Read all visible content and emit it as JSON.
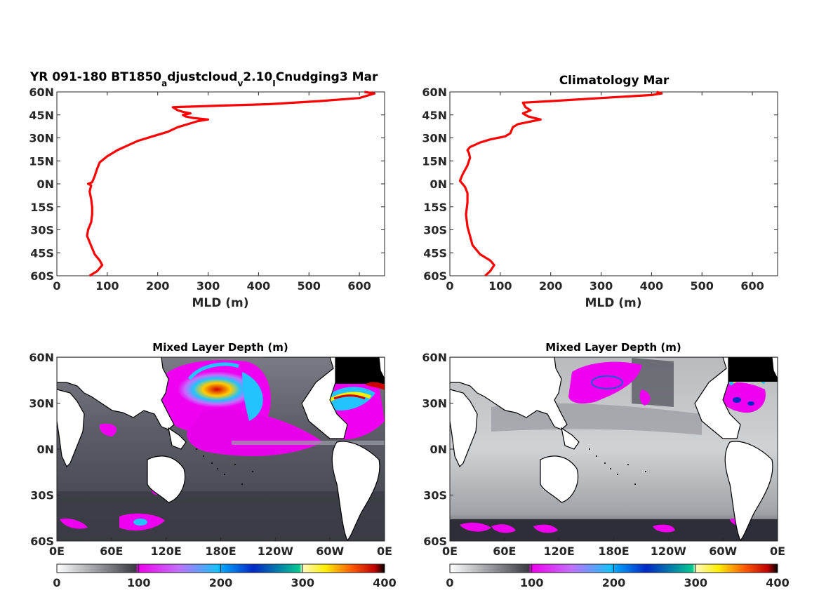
{
  "colors": {
    "profile_line": "#ff0000",
    "axis": "#262626"
  },
  "chart_data": [
    {
      "type": "line",
      "title_main": "YR 091-180 BT1850",
      "title_sub1": "a",
      "title_mid": "djustcloud",
      "title_sub2": "v",
      "title_mid2": "2.10",
      "title_sub3": "I",
      "title_end": "Cnudging3 Mar",
      "xlabel": "MLD (m)",
      "xlim": [
        0,
        650
      ],
      "ylim": [
        -60,
        60
      ],
      "xticks": [
        "0",
        "100",
        "200",
        "300",
        "400",
        "500",
        "600"
      ],
      "yticks": [
        "60S",
        "45S",
        "30S",
        "15S",
        "0N",
        "15N",
        "30N",
        "45N",
        "60N"
      ],
      "series": [
        {
          "x": [
            65,
            80,
            90,
            85,
            75,
            70,
            65,
            60,
            62,
            68,
            70,
            70,
            68,
            65,
            68,
            62,
            70,
            75,
            80,
            85,
            100,
            120,
            140,
            160,
            190,
            220,
            240,
            260,
            280,
            300,
            270,
            255,
            250,
            265,
            250,
            240,
            230,
            320,
            420,
            520,
            600,
            620,
            630,
            610
          ],
          "y": [
            -60,
            -57,
            -53,
            -50,
            -46,
            -42,
            -38,
            -34,
            -30,
            -25,
            -20,
            -15,
            -10,
            -5,
            -1,
            0,
            1,
            5,
            10,
            14,
            18,
            22,
            25,
            28,
            31,
            34,
            37,
            39,
            41,
            42,
            43,
            44,
            45,
            46,
            47,
            48,
            50,
            51,
            52,
            54,
            56,
            58,
            59,
            60
          ]
        }
      ]
    },
    {
      "type": "line",
      "title": "Climatology Mar",
      "xlabel": "MLD (m)",
      "xlim": [
        0,
        650
      ],
      "ylim": [
        -60,
        60
      ],
      "xticks": [
        "0",
        "100",
        "200",
        "300",
        "400",
        "500",
        "600"
      ],
      "yticks": [
        "60S",
        "45S",
        "30S",
        "15S",
        "0N",
        "15N",
        "30N",
        "45N",
        "60N"
      ],
      "series": [
        {
          "x": [
            70,
            80,
            88,
            80,
            60,
            45,
            40,
            35,
            32,
            35,
            35,
            30,
            25,
            20,
            25,
            35,
            40,
            38,
            35,
            40,
            60,
            80,
            110,
            120,
            125,
            135,
            180,
            155,
            145,
            160,
            150,
            145,
            200,
            300,
            400,
            420,
            410
          ],
          "y": [
            -60,
            -57,
            -53,
            -50,
            -46,
            -40,
            -34,
            -28,
            -20,
            -12,
            -6,
            -2,
            0,
            2,
            6,
            12,
            17,
            20,
            22,
            24,
            27,
            29,
            31,
            33,
            37,
            39,
            42,
            44,
            46,
            48,
            50,
            53,
            54,
            56,
            58,
            59,
            60
          ]
        }
      ]
    },
    {
      "type": "heatmap",
      "title": "Mixed Layer Depth (m)",
      "xticks": [
        "0E",
        "60E",
        "120E",
        "180E",
        "120W",
        "60W",
        "0E"
      ],
      "yticks": [
        "60S",
        "30S",
        "0N",
        "30N",
        "60N"
      ],
      "colorbar_ticks": [
        "0",
        "100",
        "200",
        "300",
        "400"
      ],
      "colorbar_range": [
        0,
        400
      ]
    },
    {
      "type": "heatmap",
      "title": "Mixed Layer Depth (m)",
      "xticks": [
        "0E",
        "60E",
        "120E",
        "180E",
        "120W",
        "60W",
        "0E"
      ],
      "yticks": [
        "60S",
        "30S",
        "0N",
        "30N",
        "60N"
      ],
      "colorbar_ticks": [
        "0",
        "100",
        "200",
        "300",
        "400"
      ],
      "colorbar_range": [
        0,
        400
      ]
    }
  ]
}
